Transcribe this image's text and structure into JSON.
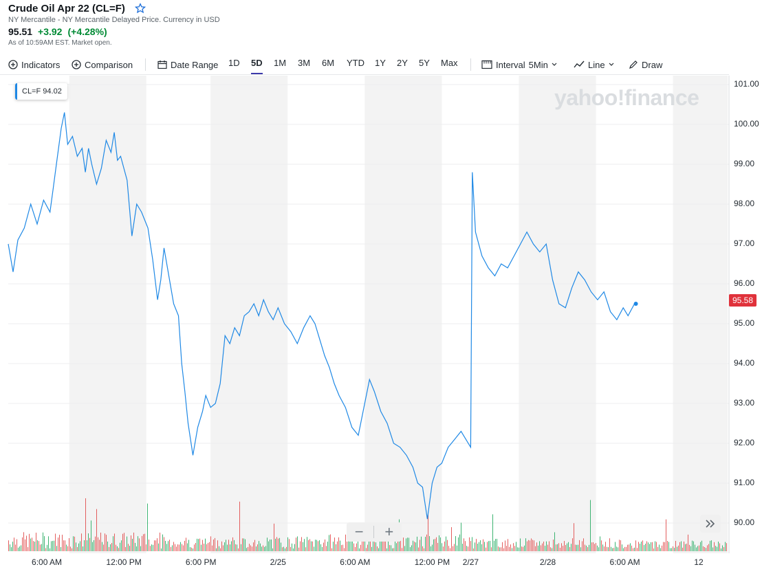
{
  "header": {
    "title": "Crude Oil Apr 22 (CL=F)",
    "subtitle": "NY Mercantile - NY Mercantile Delayed Price. Currency in USD",
    "price": "95.51",
    "change": "+3.92",
    "change_pct": "(+4.28%)",
    "as_of": "As of 10:59AM EST. Market open."
  },
  "toolbar": {
    "indicators": "Indicators",
    "comparison": "Comparison",
    "date_range": "Date Range",
    "ranges": [
      "1D",
      "5D",
      "1M",
      "3M",
      "6M",
      "YTD",
      "1Y",
      "2Y",
      "5Y",
      "Max"
    ],
    "active_range": "5D",
    "interval_label": "Interval",
    "interval_value": "5Min",
    "chart_type": "Line",
    "draw": "Draw"
  },
  "tooltip": {
    "symbol": "CL=F",
    "value": "94.02"
  },
  "watermark": "yahoo!finance",
  "zoom": {
    "minus": "−",
    "plus": "+"
  },
  "current_price_badge": "95.58",
  "colors": {
    "line": "#1e88e5",
    "up_volume": "#3cb371",
    "down_volume": "#e35d5d",
    "shade": "#f3f3f3",
    "accent": "#3d3aaa",
    "badge": "#e0323b"
  },
  "chart_data": {
    "type": "line",
    "series": [
      {
        "name": "CL=F",
        "points": [
          [
            0,
            97.0
          ],
          [
            3,
            96.3
          ],
          [
            6,
            97.1
          ],
          [
            10,
            97.4
          ],
          [
            14,
            98.0
          ],
          [
            18,
            97.5
          ],
          [
            22,
            98.1
          ],
          [
            26,
            97.8
          ],
          [
            28,
            98.4
          ],
          [
            30,
            99.0
          ],
          [
            33,
            99.9
          ],
          [
            35,
            100.3
          ],
          [
            37,
            99.5
          ],
          [
            40,
            99.7
          ],
          [
            43,
            99.2
          ],
          [
            46,
            99.4
          ],
          [
            48,
            98.8
          ],
          [
            50,
            99.4
          ],
          [
            52,
            99.0
          ],
          [
            55,
            98.5
          ],
          [
            58,
            98.9
          ],
          [
            61,
            99.6
          ],
          [
            64,
            99.3
          ],
          [
            66,
            99.8
          ],
          [
            68,
            99.1
          ],
          [
            70,
            99.2
          ],
          [
            74,
            98.6
          ],
          [
            77,
            97.2
          ],
          [
            80,
            98.0
          ],
          [
            83,
            97.8
          ],
          [
            87,
            97.4
          ],
          [
            90,
            96.6
          ],
          [
            93,
            95.6
          ],
          [
            95,
            96.1
          ],
          [
            97,
            96.9
          ],
          [
            100,
            96.2
          ],
          [
            103,
            95.5
          ],
          [
            106,
            95.2
          ],
          [
            108,
            94.0
          ],
          [
            110,
            93.3
          ],
          [
            112,
            92.5
          ],
          [
            115,
            91.7
          ],
          [
            118,
            92.4
          ],
          [
            121,
            92.8
          ],
          [
            123,
            93.2
          ],
          [
            126,
            92.9
          ],
          [
            129,
            93.0
          ],
          [
            132,
            93.5
          ],
          [
            135,
            94.7
          ],
          [
            138,
            94.5
          ],
          [
            141,
            94.9
          ],
          [
            144,
            94.7
          ],
          [
            147,
            95.2
          ],
          [
            150,
            95.3
          ],
          [
            153,
            95.5
          ],
          [
            156,
            95.2
          ],
          [
            159,
            95.6
          ],
          [
            162,
            95.3
          ],
          [
            165,
            95.1
          ],
          [
            168,
            95.4
          ],
          [
            172,
            95.0
          ],
          [
            176,
            94.8
          ],
          [
            180,
            94.5
          ],
          [
            184,
            94.9
          ],
          [
            188,
            95.2
          ],
          [
            191,
            95.0
          ],
          [
            194,
            94.6
          ],
          [
            197,
            94.2
          ],
          [
            200,
            93.9
          ],
          [
            203,
            93.5
          ],
          [
            206,
            93.2
          ],
          [
            210,
            92.9
          ],
          [
            214,
            92.4
          ],
          [
            218,
            92.2
          ],
          [
            222,
            93.0
          ],
          [
            225,
            93.6
          ],
          [
            228,
            93.3
          ],
          [
            232,
            92.8
          ],
          [
            236,
            92.5
          ],
          [
            240,
            92.0
          ],
          [
            244,
            91.9
          ],
          [
            248,
            91.7
          ],
          [
            252,
            91.4
          ],
          [
            255,
            91.0
          ],
          [
            258,
            90.9
          ],
          [
            261,
            90.1
          ],
          [
            264,
            91.0
          ],
          [
            267,
            91.4
          ],
          [
            270,
            91.5
          ],
          [
            274,
            91.9
          ],
          [
            278,
            92.1
          ],
          [
            282,
            92.3
          ],
          [
            285,
            92.1
          ],
          [
            288,
            91.9
          ],
          [
            289,
            98.8
          ],
          [
            291,
            97.3
          ],
          [
            295,
            96.7
          ],
          [
            299,
            96.4
          ],
          [
            303,
            96.2
          ],
          [
            307,
            96.5
          ],
          [
            311,
            96.4
          ],
          [
            315,
            96.7
          ],
          [
            319,
            97.0
          ],
          [
            323,
            97.3
          ],
          [
            327,
            97.0
          ],
          [
            331,
            96.8
          ],
          [
            335,
            97.0
          ],
          [
            339,
            96.1
          ],
          [
            343,
            95.5
          ],
          [
            347,
            95.4
          ],
          [
            351,
            95.9
          ],
          [
            355,
            96.3
          ],
          [
            359,
            96.1
          ],
          [
            363,
            95.8
          ],
          [
            367,
            95.6
          ],
          [
            371,
            95.8
          ],
          [
            375,
            95.3
          ],
          [
            379,
            95.1
          ],
          [
            383,
            95.4
          ],
          [
            386,
            95.2
          ],
          [
            390,
            95.5
          ]
        ]
      }
    ],
    "volume": [
      {
        "day": 0,
        "level": 0.4
      },
      {
        "day": 1,
        "level": 0.3
      },
      {
        "day": 2,
        "level": 0.35
      },
      {
        "day": 3,
        "level": 0.25
      },
      {
        "day": 4,
        "level": 0.2
      }
    ],
    "x_ticks": [
      {
        "x": 24,
        "label": "6:00 AM"
      },
      {
        "x": 72,
        "label": "12:00 PM"
      },
      {
        "x": 120,
        "label": "6:00 PM"
      },
      {
        "x": 168,
        "label": "2/25"
      },
      {
        "x": 216,
        "label": "6:00 AM"
      },
      {
        "x": 264,
        "label": "12:00 PM"
      },
      {
        "x": 288,
        "label": "2/27"
      },
      {
        "x": 336,
        "label": "2/28"
      },
      {
        "x": 384,
        "label": "6:00 AM"
      },
      {
        "x": 430,
        "label": "12"
      }
    ],
    "y_ticks": [
      "101.00",
      "100.00",
      "99.00",
      "98.00",
      "97.00",
      "96.00",
      "95.00",
      "94.00",
      "93.00",
      "92.00",
      "91.00",
      "90.00"
    ],
    "ylim": [
      89.5,
      101.3
    ],
    "xlim": [
      0,
      448
    ],
    "shaded_bands": [
      [
        38,
        86
      ],
      [
        126,
        174
      ],
      [
        222,
        270
      ],
      [
        318,
        366
      ],
      [
        414,
        448
      ]
    ]
  }
}
